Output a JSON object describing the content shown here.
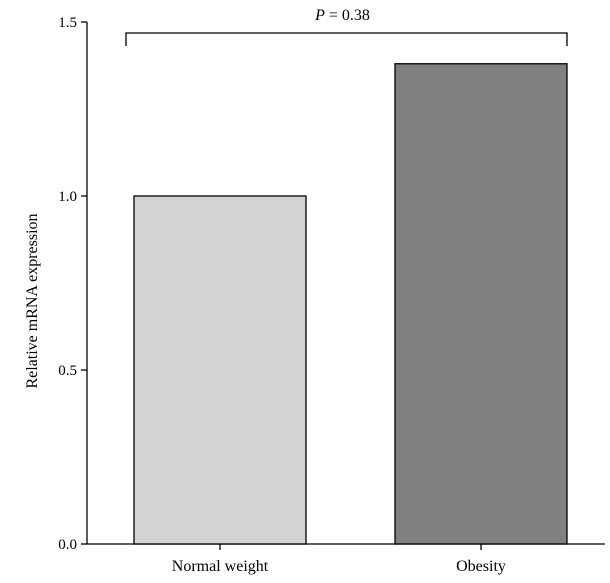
{
  "chart_data": {
    "type": "bar",
    "title": "",
    "xlabel": "",
    "ylabel": "Relative mRNA expression",
    "ylim": [
      0,
      1.5
    ],
    "yticks": [
      {
        "value": 0.0,
        "label": "0.0"
      },
      {
        "value": 0.5,
        "label": "0.5"
      },
      {
        "value": 1.0,
        "label": "1.0"
      },
      {
        "value": 1.5,
        "label": "1.5"
      }
    ],
    "categories": [
      "Normal weight",
      "Obesity"
    ],
    "values": [
      1.0,
      1.38
    ],
    "colors": [
      "#d3d3d3",
      "#808080"
    ],
    "grid": false,
    "legend": "none",
    "significance": {
      "p_symbol": "P",
      "p_text": " = 0.38",
      "between": [
        "Normal weight",
        "Obesity"
      ]
    }
  }
}
